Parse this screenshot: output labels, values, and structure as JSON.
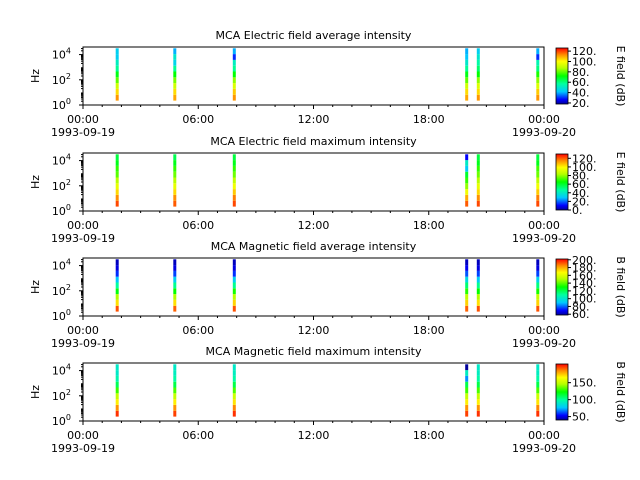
{
  "chart_data": [
    {
      "type": "heatmap",
      "title": "MCA  Electric field average intensity",
      "ylabel": "Hz",
      "colorbar_label": "E field (dB)",
      "colorbar_range": [
        18,
        126
      ],
      "colorbar_ticks": [
        "20.",
        "40.",
        "60.",
        "80.",
        "100.",
        "120."
      ],
      "y_scale": "log",
      "ylim": [
        1,
        40000
      ],
      "ytick_labels": [
        {
          "base": "10",
          "exp": "0"
        },
        {
          "base": "10",
          "exp": "2"
        },
        {
          "base": "10",
          "exp": "4"
        }
      ],
      "x_range": [
        "1993-09-19 00:00",
        "1993-09-20 00:00"
      ],
      "xtick_labels": [
        "00:00",
        "06:00",
        "12:00",
        "18:00",
        "00:00"
      ],
      "xtick_dates": [
        "1993-09-19",
        "1993-09-20"
      ],
      "bursts": [
        {
          "t_hours": 1.7,
          "profile": [
            44,
            44,
            52,
            58,
            70,
            80,
            92,
            104,
            112
          ]
        },
        {
          "t_hours": 4.7,
          "profile": [
            40,
            50,
            45,
            58,
            72,
            82,
            92,
            104,
            110
          ]
        },
        {
          "t_hours": 7.8,
          "profile": [
            40,
            30,
            52,
            58,
            72,
            84,
            94,
            106,
            112
          ]
        },
        {
          "t_hours": 19.9,
          "profile": [
            40,
            42,
            50,
            58,
            70,
            80,
            92,
            104,
            110
          ]
        },
        {
          "t_hours": 20.5,
          "profile": [
            44,
            50,
            56,
            62,
            72,
            84,
            94,
            104,
            112
          ]
        },
        {
          "t_hours": 23.6,
          "profile": [
            40,
            30,
            54,
            60,
            74,
            84,
            94,
            106,
            112
          ]
        }
      ]
    },
    {
      "type": "heatmap",
      "title": "MCA  Electric field maximum intensity",
      "ylabel": "Hz",
      "colorbar_label": "E field (dB)",
      "colorbar_range": [
        0,
        130
      ],
      "colorbar_ticks": [
        "0.",
        "20.",
        "40.",
        "60.",
        "80.",
        "100.",
        "120."
      ],
      "y_scale": "log",
      "ylim": [
        1,
        40000
      ],
      "ytick_labels": [
        {
          "base": "10",
          "exp": "0"
        },
        {
          "base": "10",
          "exp": "2"
        },
        {
          "base": "10",
          "exp": "4"
        }
      ],
      "x_range": [
        "1993-09-19 00:00",
        "1993-09-20 00:00"
      ],
      "xtick_labels": [
        "00:00",
        "06:00",
        "12:00",
        "18:00",
        "00:00"
      ],
      "xtick_dates": [
        "1993-09-19",
        "1993-09-20"
      ],
      "bursts": [
        {
          "t_hours": 1.7,
          "profile": [
            58,
            62,
            70,
            74,
            84,
            94,
            104,
            114,
            122
          ]
        },
        {
          "t_hours": 4.7,
          "profile": [
            56,
            62,
            70,
            76,
            84,
            94,
            104,
            114,
            120
          ]
        },
        {
          "t_hours": 7.8,
          "profile": [
            58,
            62,
            70,
            76,
            86,
            96,
            106,
            116,
            122
          ]
        },
        {
          "t_hours": 19.9,
          "profile": [
            10,
            40,
            30,
            60,
            70,
            80,
            96,
            110,
            120
          ]
        },
        {
          "t_hours": 20.5,
          "profile": [
            58,
            62,
            70,
            76,
            84,
            94,
            104,
            114,
            122
          ]
        },
        {
          "t_hours": 23.6,
          "profile": [
            58,
            62,
            72,
            76,
            86,
            96,
            106,
            116,
            122
          ]
        }
      ]
    },
    {
      "type": "heatmap",
      "title": "MCA  Magnetic field average intensity",
      "ylabel": "Hz",
      "colorbar_label": "B field (dB)",
      "colorbar_range": [
        58,
        202
      ],
      "colorbar_ticks": [
        "60.",
        "80.",
        "100.",
        "120.",
        "140.",
        "160.",
        "180.",
        "200."
      ],
      "y_scale": "log",
      "ylim": [
        1,
        40000
      ],
      "ytick_labels": [
        {
          "base": "10",
          "exp": "0"
        },
        {
          "base": "10",
          "exp": "2"
        },
        {
          "base": "10",
          "exp": "4"
        }
      ],
      "x_range": [
        "1993-09-19 00:00",
        "1993-09-20 00:00"
      ],
      "xtick_labels": [
        "00:00",
        "06:00",
        "12:00",
        "18:00",
        "00:00"
      ],
      "xtick_dates": [
        "1993-09-19",
        "1993-09-20"
      ],
      "bursts": [
        {
          "t_hours": 1.7,
          "profile": [
            62,
            66,
            74,
            90,
            110,
            128,
            150,
            172,
            192
          ]
        },
        {
          "t_hours": 4.7,
          "profile": [
            62,
            66,
            76,
            92,
            112,
            130,
            150,
            172,
            190
          ]
        },
        {
          "t_hours": 7.8,
          "profile": [
            62,
            66,
            74,
            92,
            112,
            132,
            152,
            174,
            192
          ]
        },
        {
          "t_hours": 19.9,
          "profile": [
            62,
            68,
            78,
            96,
            116,
            134,
            154,
            174,
            190
          ]
        },
        {
          "t_hours": 20.5,
          "profile": [
            62,
            66,
            76,
            92,
            112,
            130,
            150,
            172,
            192
          ]
        },
        {
          "t_hours": 23.6,
          "profile": [
            62,
            66,
            76,
            94,
            114,
            132,
            154,
            174,
            192
          ]
        }
      ]
    },
    {
      "type": "heatmap",
      "title": "MCA  Magnetic field maximum intensity",
      "ylabel": "Hz",
      "colorbar_label": "B field (dB)",
      "colorbar_range": [
        40,
        205
      ],
      "colorbar_ticks": [
        "50.",
        "100.",
        "150."
      ],
      "y_scale": "log",
      "ylim": [
        1,
        40000
      ],
      "ytick_labels": [
        {
          "base": "10",
          "exp": "0"
        },
        {
          "base": "10",
          "exp": "2"
        },
        {
          "base": "10",
          "exp": "4"
        }
      ],
      "x_range": [
        "1993-09-19 00:00",
        "1993-09-20 00:00"
      ],
      "xtick_labels": [
        "00:00",
        "06:00",
        "12:00",
        "18:00",
        "00:00"
      ],
      "xtick_dates": [
        "1993-09-19",
        "1993-09-20"
      ],
      "bursts": [
        {
          "t_hours": 1.7,
          "profile": [
            90,
            90,
            96,
            110,
            130,
            150,
            168,
            184,
            198
          ]
        },
        {
          "t_hours": 4.7,
          "profile": [
            90,
            92,
            98,
            112,
            132,
            150,
            168,
            184,
            196
          ]
        },
        {
          "t_hours": 7.8,
          "profile": [
            90,
            92,
            98,
            112,
            132,
            152,
            170,
            186,
            198
          ]
        },
        {
          "t_hours": 19.9,
          "profile": [
            40,
            92,
            70,
            112,
            130,
            150,
            168,
            184,
            196
          ]
        },
        {
          "t_hours": 20.5,
          "profile": [
            90,
            92,
            98,
            112,
            132,
            150,
            168,
            184,
            198
          ]
        },
        {
          "t_hours": 23.6,
          "profile": [
            90,
            92,
            98,
            112,
            132,
            152,
            170,
            186,
            198
          ]
        }
      ]
    }
  ]
}
